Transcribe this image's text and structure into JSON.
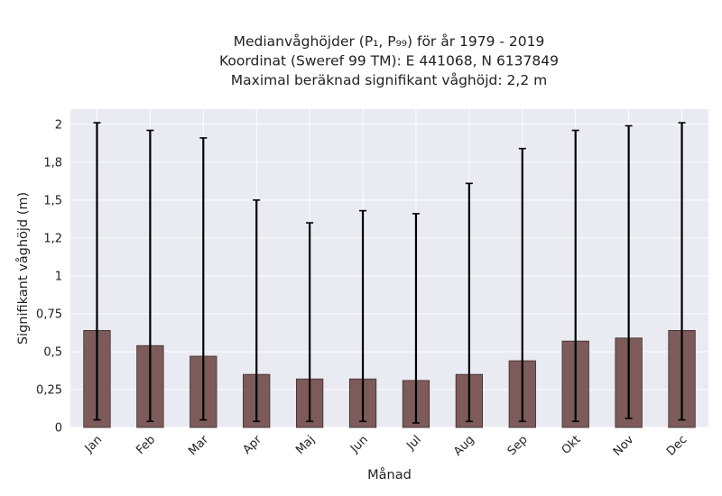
{
  "chart_data": {
    "type": "bar",
    "title_lines": [
      "Medianvåghöjder (P₁, P₉₉) för år 1979 - 2019",
      "Koordinat (Sweref 99 TM): E 441068, N 6137849",
      "Maximal beräknad signifikant våghöjd: 2,2 m"
    ],
    "xlabel": "Månad",
    "ylabel": "Signifikant våghöjd (m)",
    "categories": [
      "Jan",
      "Feb",
      "Mar",
      "Apr",
      "Maj",
      "Jun",
      "Jul",
      "Aug",
      "Sep",
      "Okt",
      "Nov",
      "Dec"
    ],
    "series": [
      {
        "values": [
          0.64,
          0.54,
          0.47,
          0.35,
          0.32,
          0.32,
          0.31,
          0.35,
          0.44,
          0.57,
          0.59,
          0.64
        ],
        "err_low": [
          0.05,
          0.04,
          0.05,
          0.04,
          0.04,
          0.04,
          0.03,
          0.04,
          0.04,
          0.04,
          0.06,
          0.05
        ],
        "err_high": [
          2.01,
          1.96,
          1.91,
          1.5,
          1.35,
          1.43,
          1.41,
          1.61,
          1.84,
          1.96,
          1.99,
          2.01
        ]
      }
    ],
    "ylim": [
      0,
      2.1
    ],
    "yticks": [
      0,
      0.25,
      0.5,
      0.75,
      1,
      1.25,
      1.5,
      1.75,
      2
    ],
    "ytick_labels": [
      "0",
      "0,25",
      "0,5",
      "0,75",
      "1",
      "1,2",
      "1,5",
      "1,8",
      "2"
    ],
    "grid": true,
    "colors": {
      "bar": "#7d5b5b",
      "bar_edge": "#3a2a2a",
      "error_bar": "#000000",
      "plot_background": "#eaeaf2",
      "grid": "#ffffff"
    }
  }
}
